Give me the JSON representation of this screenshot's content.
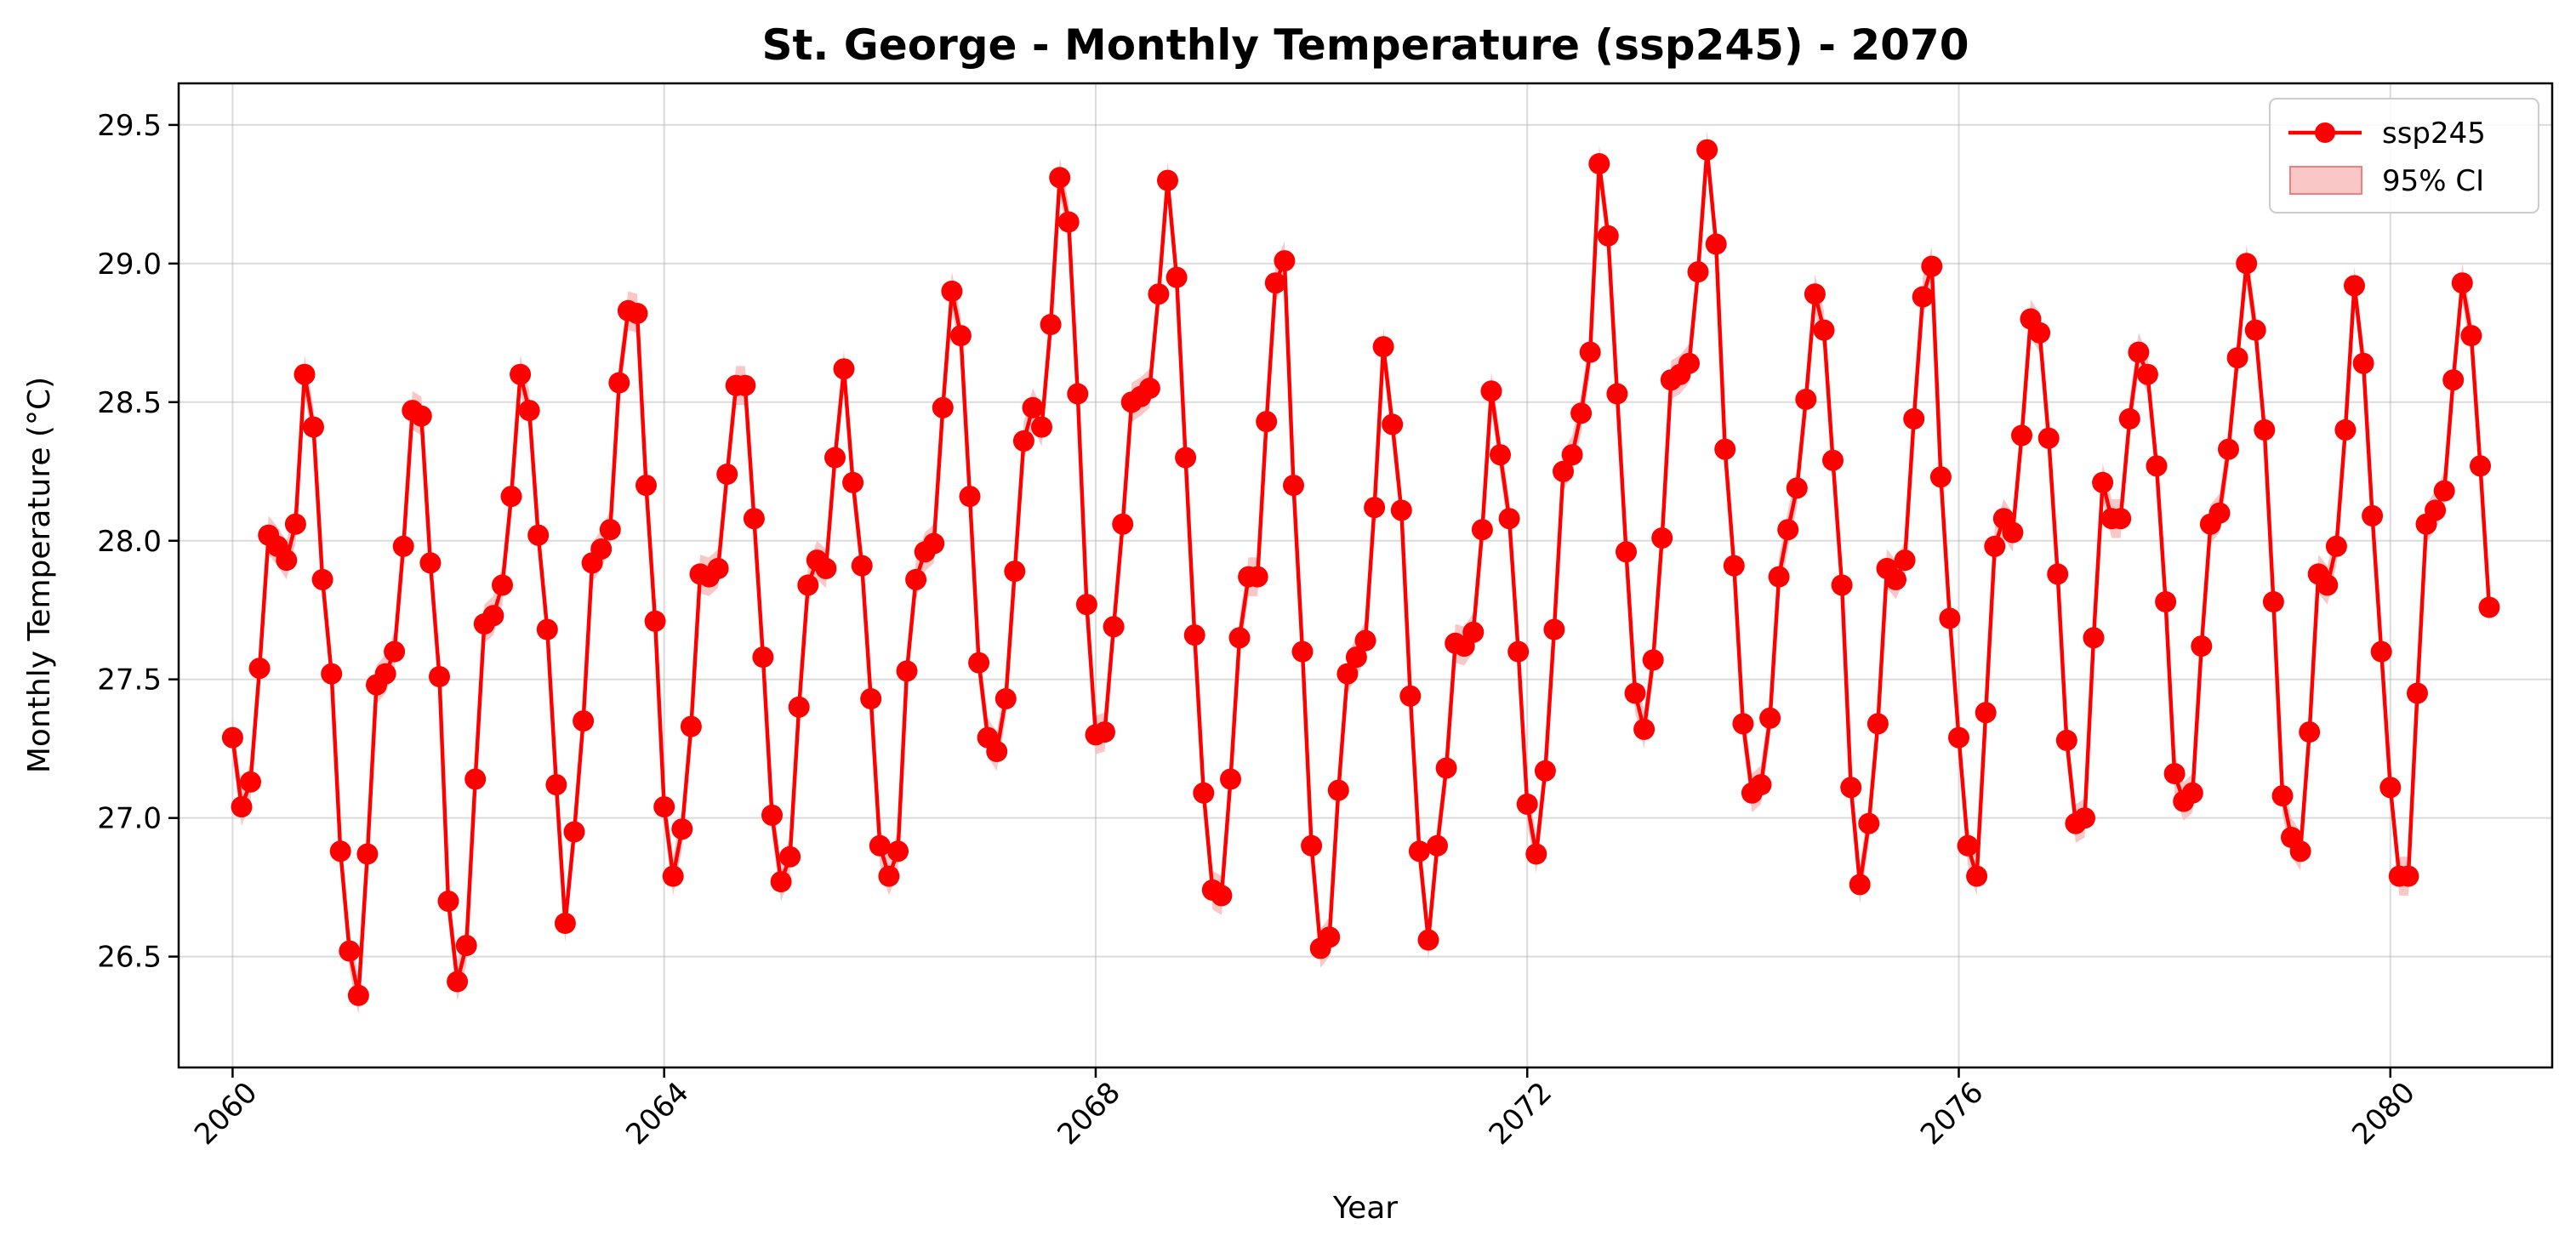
{
  "chart_data": {
    "type": "line",
    "title": "St. George - Monthly Temperature (ssp245) - 2070",
    "xlabel": "Year",
    "ylabel": "Monthly Temperature (°C)",
    "xlim": [
      2059.5,
      2081.5
    ],
    "ylim": [
      26.1,
      29.65
    ],
    "xticks": [
      2060,
      2064,
      2068,
      2072,
      2076,
      2080
    ],
    "yticks": [
      26.5,
      27.0,
      27.5,
      28.0,
      28.5,
      29.0,
      29.5
    ],
    "x_start": 2060,
    "x_step_years": 0.0833333,
    "grid": true,
    "legend_position": "top-right",
    "line_color": "#ff0000",
    "ci_color": "#f8b4b4",
    "legend": {
      "line_label": "ssp245",
      "ci_label": "95% CI"
    },
    "series": [
      {
        "name": "ssp245",
        "values": [
          27.29,
          27.04,
          27.13,
          27.54,
          28.02,
          27.98,
          27.93,
          28.06,
          28.6,
          28.41,
          27.86,
          27.52,
          26.88,
          26.52,
          26.36,
          26.87,
          27.48,
          27.52,
          27.6,
          27.98,
          28.47,
          28.45,
          27.92,
          27.51,
          26.7,
          26.41,
          26.54,
          27.14,
          27.7,
          27.73,
          27.84,
          28.16,
          28.6,
          28.47,
          28.02,
          27.68,
          27.12,
          26.62,
          26.95,
          27.35,
          27.92,
          27.97,
          28.04,
          28.57,
          28.83,
          28.82,
          28.2,
          27.71,
          27.04,
          26.79,
          26.96,
          27.33,
          27.88,
          27.87,
          27.9,
          28.24,
          28.56,
          28.56,
          28.08,
          27.58,
          27.01,
          26.77,
          26.86,
          27.4,
          27.84,
          27.93,
          27.9,
          28.3,
          28.62,
          28.21,
          27.91,
          27.43,
          26.9,
          26.79,
          26.88,
          27.53,
          27.86,
          27.96,
          27.99,
          28.48,
          28.9,
          28.74,
          28.16,
          27.56,
          27.29,
          27.24,
          27.43,
          27.89,
          28.36,
          28.48,
          28.41,
          28.78,
          29.31,
          29.15,
          28.53,
          27.77,
          27.3,
          27.31,
          27.69,
          28.06,
          28.5,
          28.52,
          28.55,
          28.89,
          29.3,
          28.95,
          28.3,
          27.66,
          27.09,
          26.74,
          26.72,
          27.14,
          27.65,
          27.87,
          27.87,
          28.43,
          28.93,
          29.01,
          28.2,
          27.6,
          26.9,
          26.53,
          26.57,
          27.1,
          27.52,
          27.58,
          27.64,
          28.12,
          28.7,
          28.42,
          28.11,
          27.44,
          26.88,
          26.56,
          26.9,
          27.18,
          27.63,
          27.62,
          27.67,
          28.04,
          28.54,
          28.31,
          28.08,
          27.6,
          27.05,
          26.87,
          27.17,
          27.68,
          28.25,
          28.31,
          28.46,
          28.68,
          29.36,
          29.1,
          28.53,
          27.96,
          27.45,
          27.32,
          27.57,
          28.01,
          28.58,
          28.6,
          28.64,
          28.97,
          29.41,
          29.07,
          28.33,
          27.91,
          27.34,
          27.09,
          27.12,
          27.36,
          27.87,
          28.04,
          28.19,
          28.51,
          28.89,
          28.76,
          28.29,
          27.84,
          27.11,
          26.76,
          26.98,
          27.34,
          27.9,
          27.86,
          27.93,
          28.44,
          28.88,
          28.99,
          28.23,
          27.72,
          27.29,
          26.9,
          26.79,
          27.38,
          27.98,
          28.08,
          28.03,
          28.38,
          28.8,
          28.75,
          28.37,
          27.88,
          27.28,
          26.98,
          27.0,
          27.65,
          28.21,
          28.08,
          28.08,
          28.44,
          28.68,
          28.6,
          28.27,
          27.78,
          27.16,
          27.06,
          27.09,
          27.62,
          28.06,
          28.1,
          28.33,
          28.66,
          29.0,
          28.76,
          28.4,
          27.78,
          27.08,
          26.93,
          26.88,
          27.31,
          27.88,
          27.84,
          27.98,
          28.4,
          28.92,
          28.64,
          28.09,
          27.6,
          27.11,
          26.79,
          26.79,
          27.45,
          28.06,
          28.11,
          28.18,
          28.58,
          28.93,
          28.74,
          28.27,
          27.76
        ],
        "ci_halfwidth": 0.07
      }
    ]
  }
}
